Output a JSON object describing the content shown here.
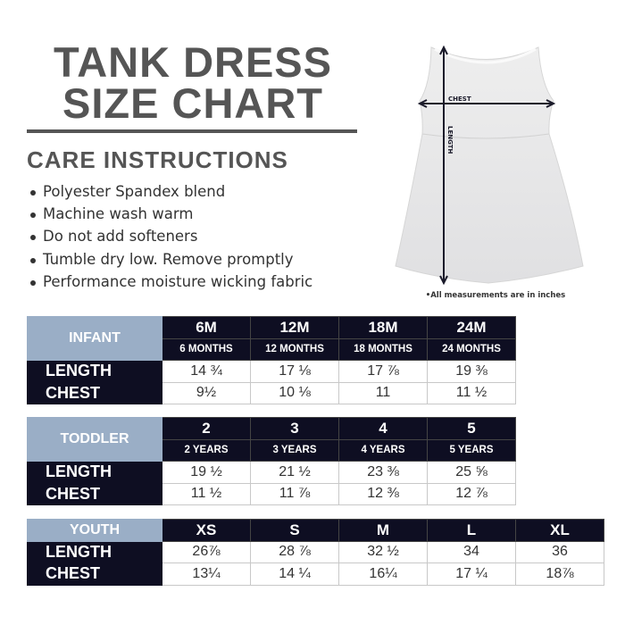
{
  "title": {
    "line1": "TANK DRESS",
    "line2": "SIZE CHART"
  },
  "care": {
    "heading": "CARE INSTRUCTIONS",
    "items": [
      "Polyester Spandex blend",
      "Machine wash warm",
      "Do not add softeners",
      "Tumble dry low. Remove promptly",
      "Performance moisture wicking fabric"
    ]
  },
  "image": {
    "chest_label": "CHEST",
    "length_label": "LENGTH",
    "note": "•All measurements are in inches"
  },
  "infant": {
    "group": "INFANT",
    "sizes": [
      "6M",
      "12M",
      "18M",
      "24M"
    ],
    "sub": [
      "6 MONTHS",
      "12 MONTHS",
      "18 MONTHS",
      "24 MONTHS"
    ],
    "length_label": "LENGTH",
    "chest_label": "CHEST",
    "length": [
      "14 ¾",
      "17 ⅛",
      "17 ⅞",
      "19 ⅜"
    ],
    "chest": [
      "9½",
      "10 ⅛",
      "11",
      "11 ½"
    ]
  },
  "toddler": {
    "group": "TODDLER",
    "sizes": [
      "2",
      "3",
      "4",
      "5"
    ],
    "sub": [
      "2 YEARS",
      "3 YEARS",
      "4 YEARS",
      "5 YEARS"
    ],
    "length_label": "LENGTH",
    "chest_label": "CHEST",
    "length": [
      "19 ½",
      "21 ½",
      "23 ⅜",
      "25 ⅝"
    ],
    "chest": [
      "11 ½",
      "11 ⅞",
      "12 ⅜",
      "12 ⅞"
    ]
  },
  "youth": {
    "group": "YOUTH",
    "sizes": [
      "XS",
      "S",
      "M",
      "L",
      "XL"
    ],
    "length_label": "LENGTH",
    "chest_label": "CHEST",
    "length": [
      "26⅞",
      "28 ⅞",
      "32 ½",
      "34",
      "36"
    ],
    "chest": [
      "13¼",
      "14 ¼",
      "16¼",
      "17 ¼",
      "18⅞"
    ]
  },
  "colors": {
    "navy": "#0e0e22",
    "group_blue": "#9aaec6",
    "title_gray": "#555555"
  }
}
